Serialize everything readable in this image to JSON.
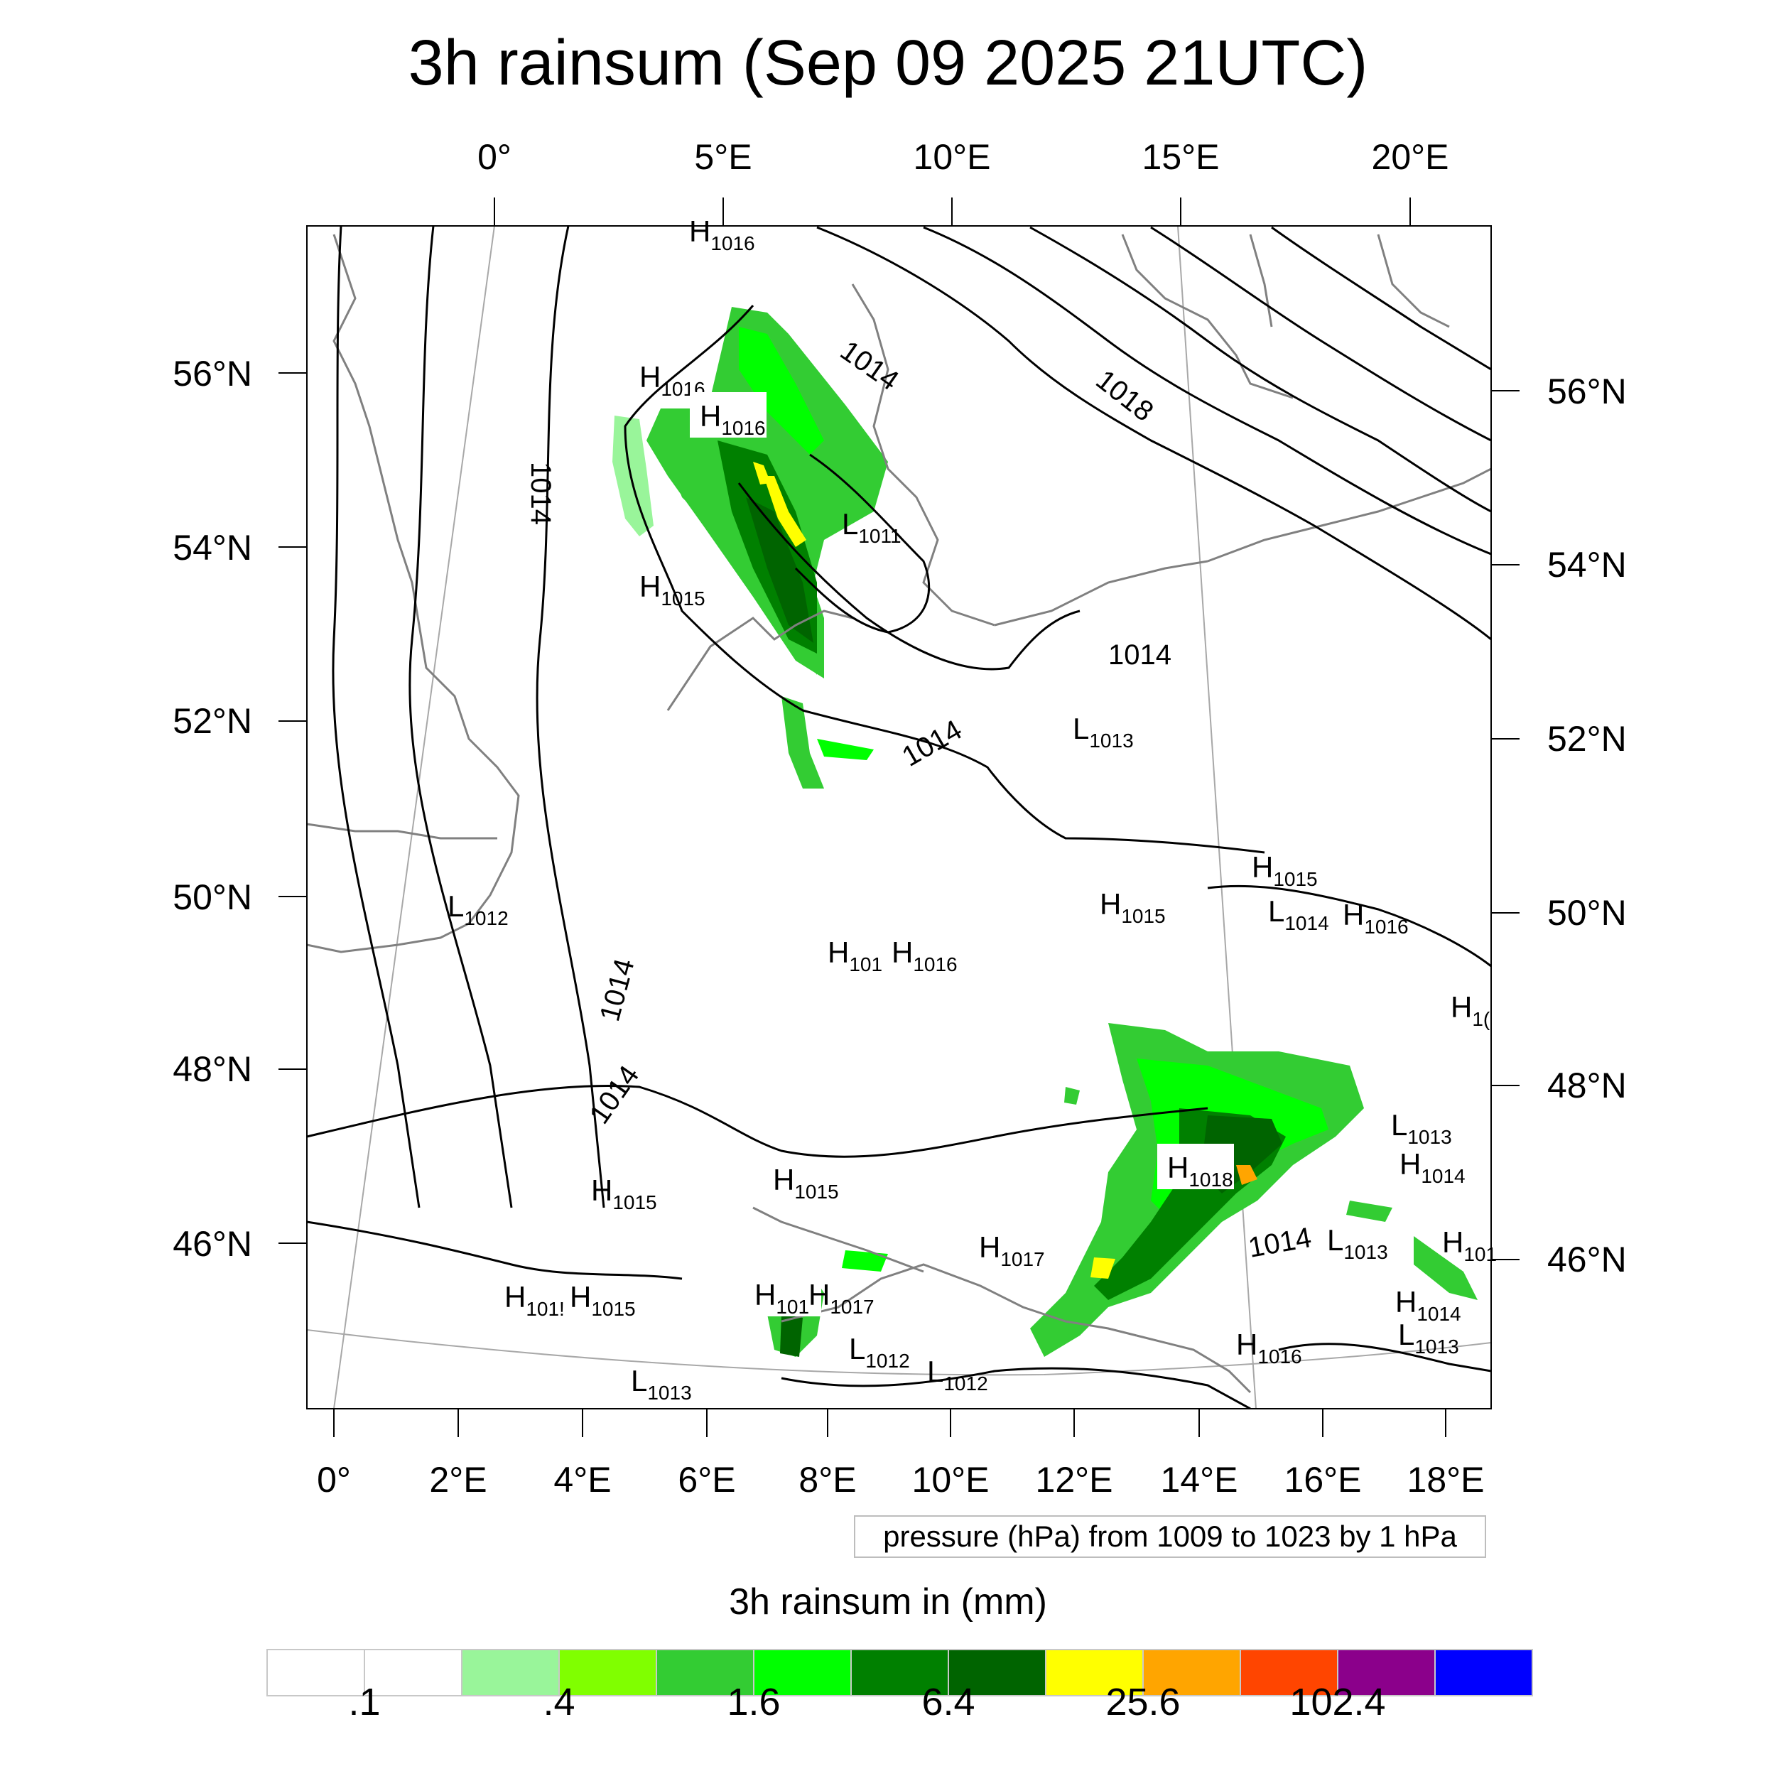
{
  "title": "3h rainsum (Sep 09 2025 21UTC)",
  "top_lon_labels": [
    "0°",
    "5°E",
    "10°E",
    "15°E",
    "20°E"
  ],
  "bottom_lon_labels": [
    "0°",
    "2°E",
    "4°E",
    "6°E",
    "8°E",
    "10°E",
    "12°E",
    "14°E",
    "16°E",
    "18°E"
  ],
  "left_lat_labels": [
    "56°N",
    "54°N",
    "52°N",
    "50°N",
    "48°N",
    "46°N"
  ],
  "right_lat_labels": [
    "56°N",
    "54°N",
    "52°N",
    "50°N",
    "48°N",
    "46°N"
  ],
  "contour_info": "pressure (hPa) from 1009 to 1023 by 1 hPa",
  "contour_labels": [
    "1014",
    "1014",
    "1018",
    "1014",
    "1014",
    "1014",
    "1014",
    "1014"
  ],
  "pressure_centers": [
    {
      "type": "H",
      "value": "1016"
    },
    {
      "type": "H",
      "value": "1016"
    },
    {
      "type": "H",
      "value": "1016"
    },
    {
      "type": "L",
      "value": "1011"
    },
    {
      "type": "H",
      "value": "1015"
    },
    {
      "type": "L",
      "value": "1013"
    },
    {
      "type": "L",
      "value": "1012"
    },
    {
      "type": "H",
      "value": "1015"
    },
    {
      "type": "H",
      "value": "1015"
    },
    {
      "type": "L",
      "value": "1014"
    },
    {
      "type": "H",
      "value": "1016"
    },
    {
      "type": "H",
      "value": "101"
    },
    {
      "type": "H",
      "value": "1016"
    },
    {
      "type": "H",
      "value": "1("
    },
    {
      "type": "L",
      "value": "1013"
    },
    {
      "type": "H",
      "value": "1018"
    },
    {
      "type": "H",
      "value": "1014"
    },
    {
      "type": "H",
      "value": "1015"
    },
    {
      "type": "H",
      "value": "1015"
    },
    {
      "type": "L",
      "value": "1013"
    },
    {
      "type": "H",
      "value": "101"
    },
    {
      "type": "H",
      "value": "1017"
    },
    {
      "type": "H",
      "value": "101"
    },
    {
      "type": "H",
      "value": "1017"
    },
    {
      "type": "H",
      "value": "101!"
    },
    {
      "type": "H",
      "value": "1015"
    },
    {
      "type": "H",
      "value": "1014"
    },
    {
      "type": "L",
      "value": "1012"
    },
    {
      "type": "L",
      "value": "1013"
    },
    {
      "type": "L",
      "value": "1012"
    },
    {
      "type": "H",
      "value": "1016"
    },
    {
      "type": "L",
      "value": "1013"
    }
  ],
  "colorbar": {
    "title": "3h rainsum in (mm)",
    "colors": [
      "#ffffff",
      "#ffffff",
      "#99f59a",
      "#80ff00",
      "#33cc33",
      "#00ff00",
      "#008000",
      "#006400",
      "#ffff00",
      "#ffa500",
      "#ff4500",
      "#8b008b",
      "#0000ff"
    ],
    "labels": [
      ".1",
      ".4",
      "1.6",
      "6.4",
      "25.6",
      "102.4"
    ]
  }
}
